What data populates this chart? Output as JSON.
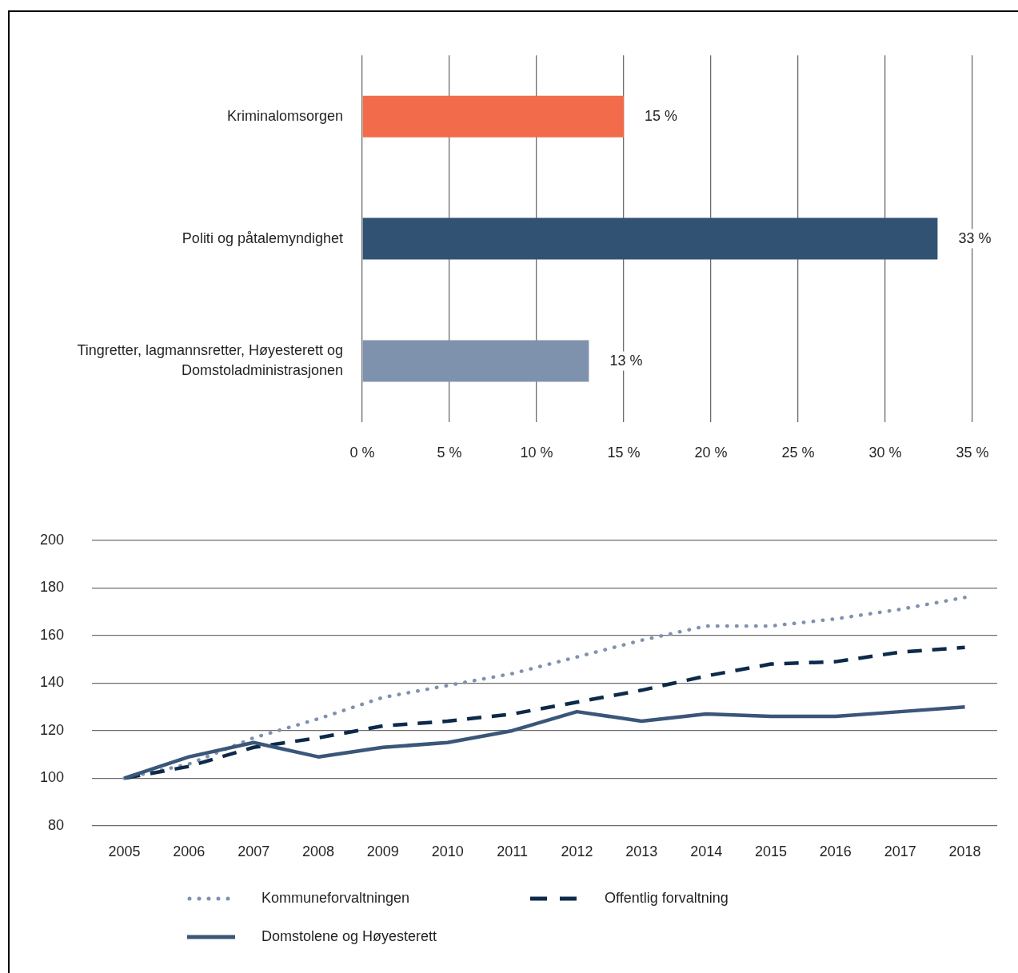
{
  "chart_data": [
    {
      "type": "bar",
      "orientation": "horizontal",
      "categories": [
        "Kriminalomsorgen",
        "Politi og påtalemyndighet",
        "Tingretter, lagmannsretter, Høyesterett og Domstoladministrasjonen"
      ],
      "values": [
        15,
        33,
        13
      ],
      "colors": [
        "#f26c4b",
        "#325274",
        "#7f92ad"
      ],
      "value_labels": [
        "15 %",
        "33 %",
        "13 %"
      ],
      "xlim": [
        0,
        35
      ],
      "xticks": [
        {
          "value": 0,
          "label": "0 %"
        },
        {
          "value": 5,
          "label": "5 %"
        },
        {
          "value": 10,
          "label": "10 %"
        },
        {
          "value": 15,
          "label": "15 %"
        },
        {
          "value": 20,
          "label": "20 %"
        },
        {
          "value": 25,
          "label": "25 %"
        },
        {
          "value": 30,
          "label": "30 %"
        },
        {
          "value": 35,
          "label": "35 %"
        }
      ],
      "grid": "x"
    },
    {
      "type": "line",
      "categories": [
        "2005",
        "2006",
        "2007",
        "2008",
        "2009",
        "2010",
        "2011",
        "2012",
        "2013",
        "2014",
        "2015",
        "2016",
        "2017",
        "2018"
      ],
      "series": [
        {
          "name": "Kommuneforvaltningen",
          "color": "#7f92ad",
          "line_style": "dotted",
          "values": [
            100,
            106,
            117,
            125,
            134,
            139,
            144,
            151,
            158,
            164,
            164,
            167,
            171,
            176
          ]
        },
        {
          "name": "Offentlig forvaltning",
          "color": "#0d2a4a",
          "line_style": "dashed",
          "values": [
            100,
            105,
            113,
            117,
            122,
            124,
            127,
            132,
            137,
            143,
            148,
            149,
            153,
            155
          ]
        },
        {
          "name": "Domstolene og Høyesterett",
          "color": "#3a5679",
          "line_style": "solid",
          "values": [
            100,
            109,
            115,
            109,
            113,
            115,
            120,
            128,
            124,
            127,
            126,
            126,
            128,
            130
          ]
        }
      ],
      "ylim": [
        80,
        200
      ],
      "yticks": [
        80,
        100,
        120,
        140,
        160,
        180,
        200
      ],
      "grid": "y",
      "legend": "bottom"
    }
  ]
}
